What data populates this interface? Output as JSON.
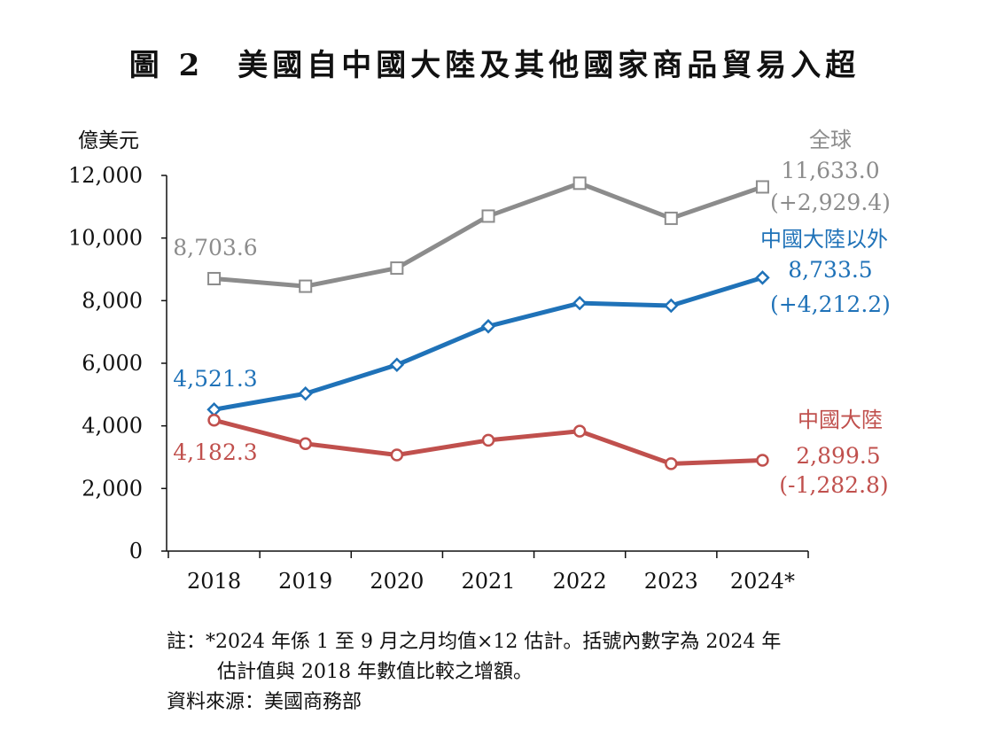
{
  "figure": {
    "number": "圖 2",
    "title": "美國自中國大陸及其他國家商品貿易入超"
  },
  "notes": [
    "註：*2024 年係 1 至 9 月之月均值×12 估計。括號內數字為 2024 年",
    "估計值與 2018 年數值比較之增額。",
    "資料來源：美國商務部"
  ],
  "chart_data": {
    "type": "line",
    "ylabel": "億美元",
    "xlabel": "",
    "ylim": [
      0,
      12000
    ],
    "yticks": [
      0,
      2000,
      4000,
      6000,
      8000,
      10000,
      12000
    ],
    "ytick_labels": [
      "0",
      "2,000",
      "4,000",
      "6,000",
      "8,000",
      "10,000",
      "12,000"
    ],
    "categories": [
      "2018",
      "2019",
      "2020",
      "2021",
      "2022",
      "2023",
      "2024*"
    ],
    "grid": false,
    "series": [
      {
        "name": "全球",
        "color": "#8c8c8c",
        "marker": "square",
        "values": [
          8703.6,
          8460,
          9040,
          10700,
          11750,
          10630,
          11633.0
        ],
        "start_label": "8,703.6",
        "end_labels": [
          "11,633.0",
          "(+2,929.4)"
        ]
      },
      {
        "name": "中國大陸以外",
        "color": "#1f72b8",
        "marker": "diamond",
        "values": [
          4521.3,
          5030,
          5950,
          7180,
          7920,
          7840,
          8733.5
        ],
        "start_label": "4,521.3",
        "end_labels": [
          "8,733.5",
          "(+4,212.2)"
        ]
      },
      {
        "name": "中國大陸",
        "color": "#c0504d",
        "marker": "circle",
        "values": [
          4182.3,
          3430,
          3070,
          3540,
          3830,
          2790,
          2899.5
        ],
        "start_label": "4,182.3",
        "end_labels": [
          "2,899.5",
          "(-1,282.8)"
        ]
      }
    ]
  }
}
